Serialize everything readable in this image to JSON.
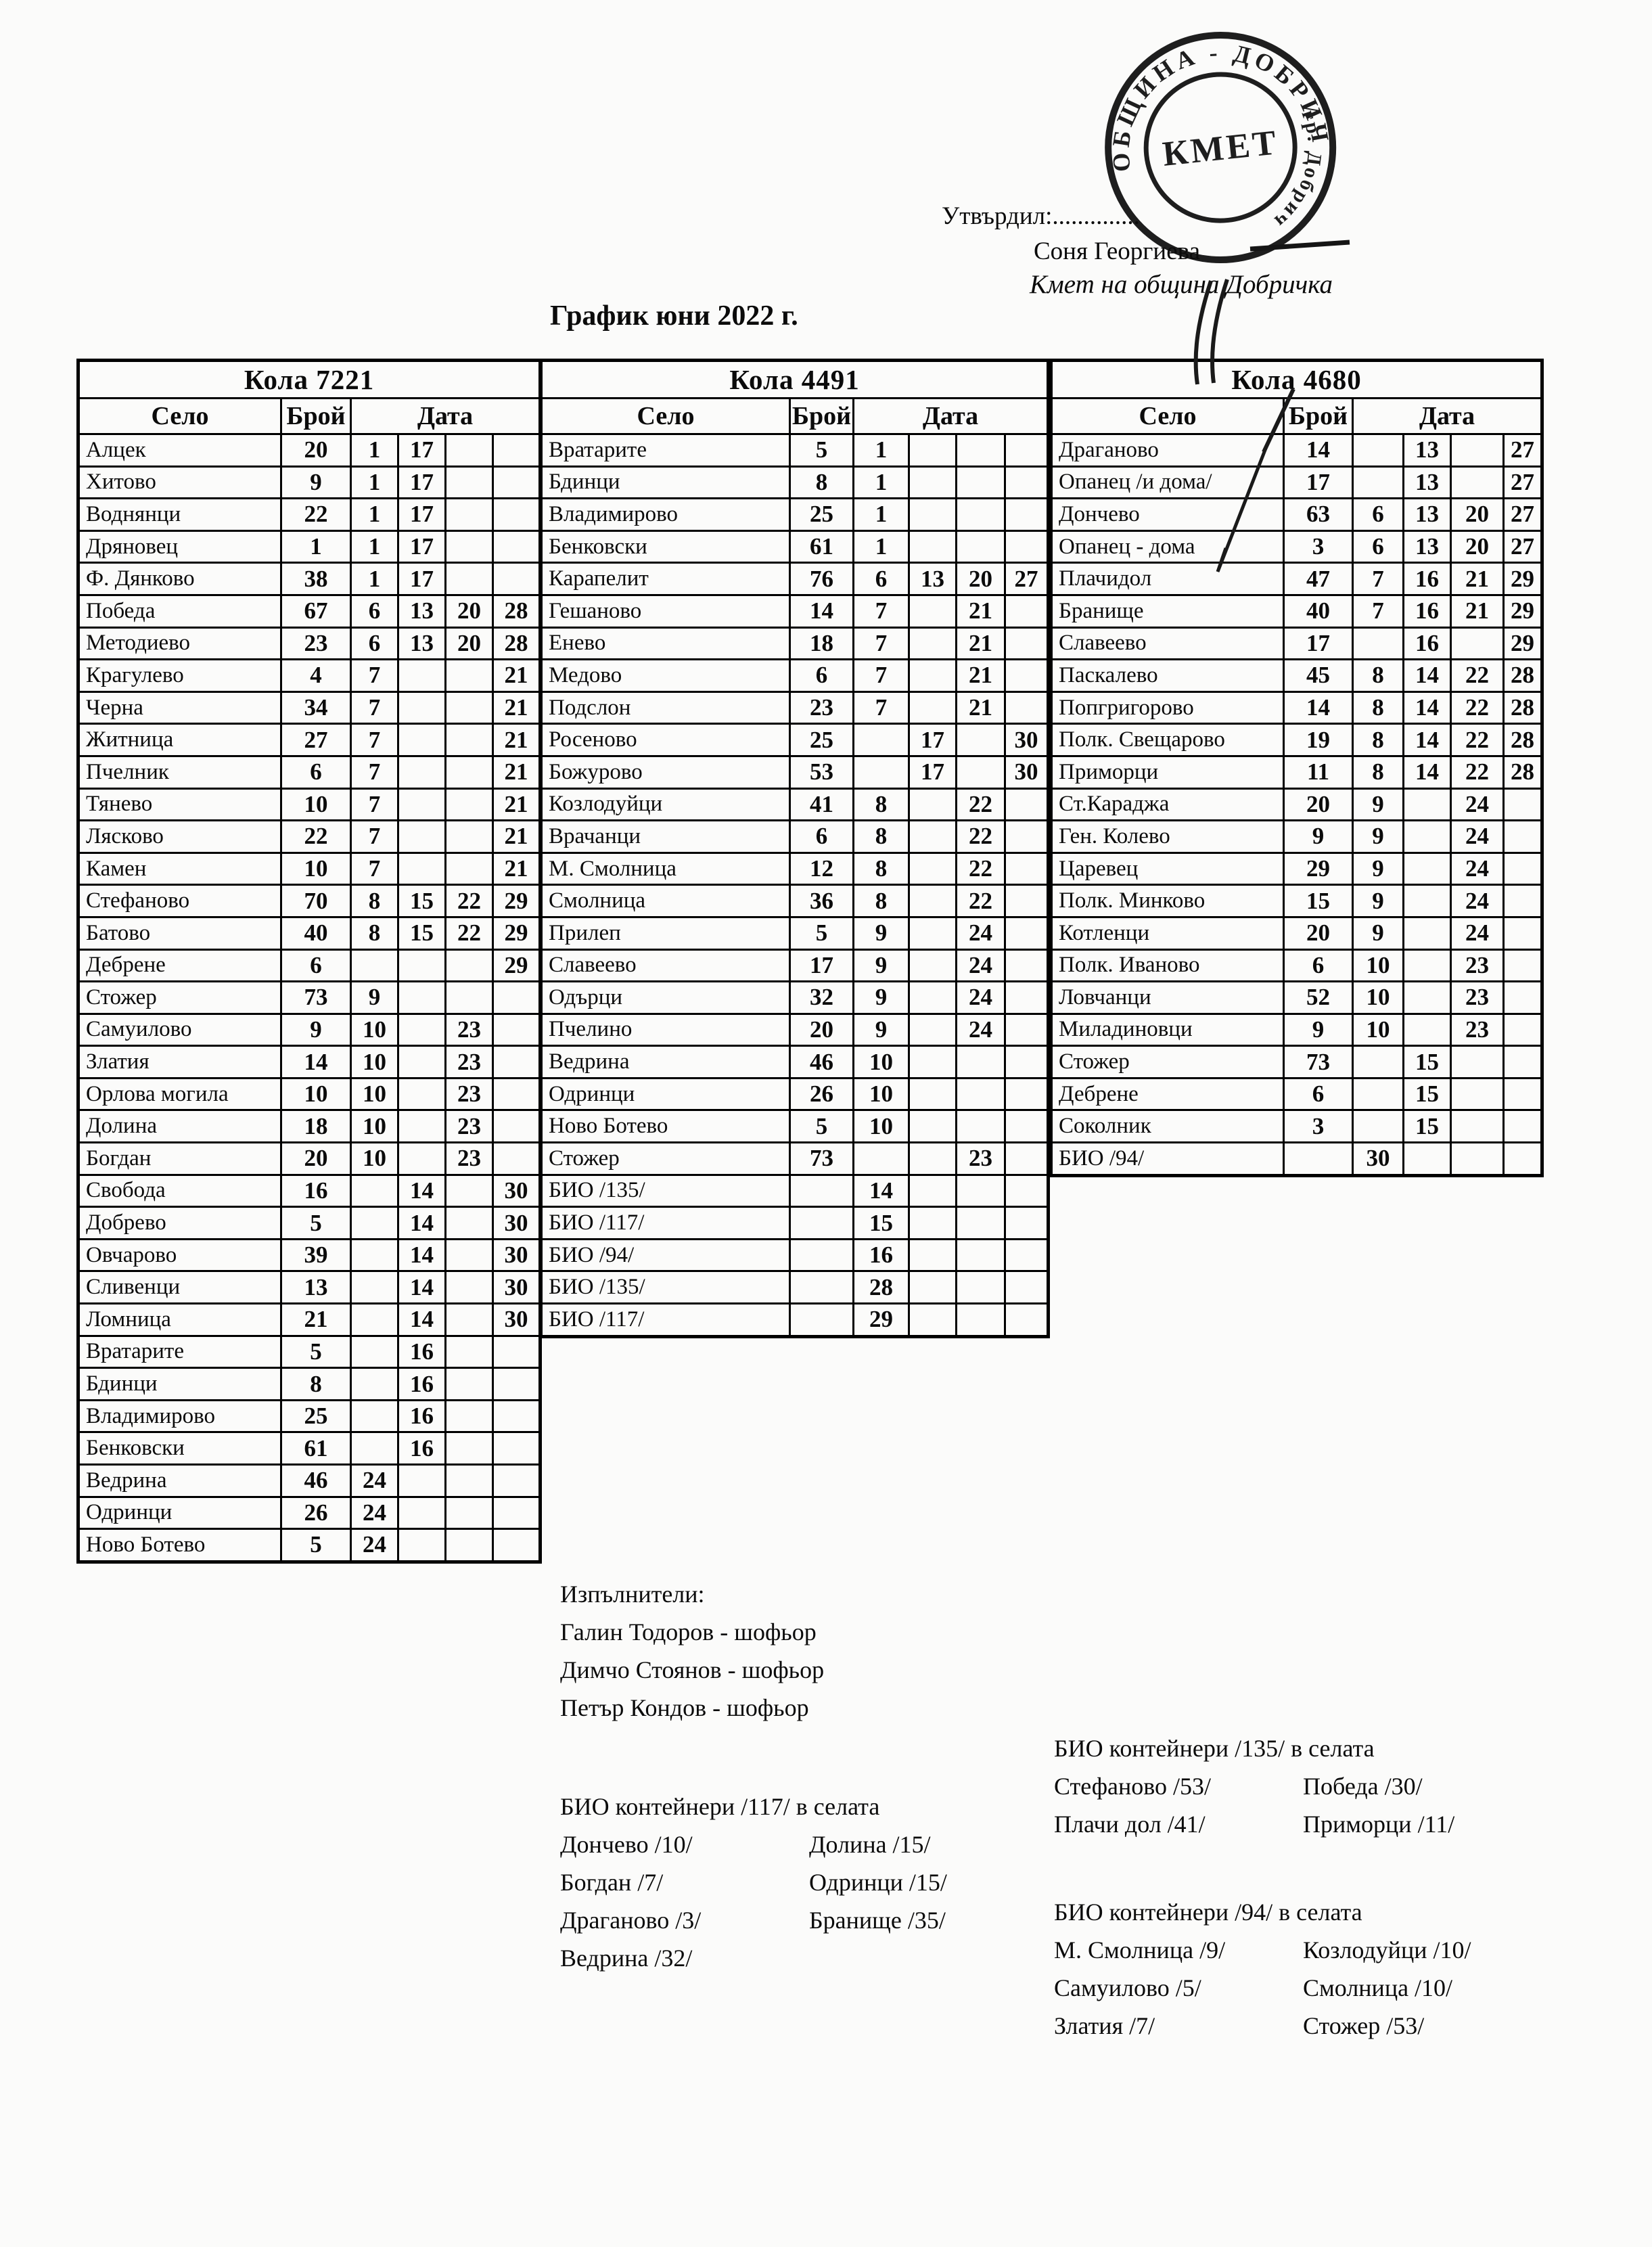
{
  "approval": {
    "label": "Утвърдил:..............",
    "name": "Соня Георгиева",
    "title": "Кмет  на община Добричка"
  },
  "stamp": {
    "ring_text_top": "ОБЩИНА - ДОБРИЧ",
    "ring_text_side": "гр. Добрич",
    "center_text": "КМЕТ"
  },
  "title": "График юни 2022 г.",
  "columns": {
    "village": "Село",
    "count": "Брой",
    "date": "Дата"
  },
  "tables": [
    {
      "name": "Кола 7221",
      "rows": [
        {
          "village": "Алцек",
          "count": "20",
          "dates": [
            "1",
            "17",
            "",
            ""
          ]
        },
        {
          "village": "Хитово",
          "count": "9",
          "dates": [
            "1",
            "17",
            "",
            ""
          ]
        },
        {
          "village": "Воднянци",
          "count": "22",
          "dates": [
            "1",
            "17",
            "",
            ""
          ]
        },
        {
          "village": "Дряновец",
          "count": "1",
          "dates": [
            "1",
            "17",
            "",
            ""
          ]
        },
        {
          "village": "Ф. Дянково",
          "count": "38",
          "dates": [
            "1",
            "17",
            "",
            ""
          ]
        },
        {
          "village": "Победа",
          "count": "67",
          "dates": [
            "6",
            "13",
            "20",
            "28"
          ]
        },
        {
          "village": "Методиево",
          "count": "23",
          "dates": [
            "6",
            "13",
            "20",
            "28"
          ]
        },
        {
          "village": "Крагулево",
          "count": "4",
          "dates": [
            "7",
            "",
            "",
            "21"
          ]
        },
        {
          "village": "Черна",
          "count": "34",
          "dates": [
            "7",
            "",
            "",
            "21"
          ]
        },
        {
          "village": "Житница",
          "count": "27",
          "dates": [
            "7",
            "",
            "",
            "21"
          ]
        },
        {
          "village": "Пчелник",
          "count": "6",
          "dates": [
            "7",
            "",
            "",
            "21"
          ]
        },
        {
          "village": "Тянево",
          "count": "10",
          "dates": [
            "7",
            "",
            "",
            "21"
          ]
        },
        {
          "village": "Лясково",
          "count": "22",
          "dates": [
            "7",
            "",
            "",
            "21"
          ]
        },
        {
          "village": "Камен",
          "count": "10",
          "dates": [
            "7",
            "",
            "",
            "21"
          ]
        },
        {
          "village": "Стефаново",
          "count": "70",
          "dates": [
            "8",
            "15",
            "22",
            "29"
          ]
        },
        {
          "village": "Батово",
          "count": "40",
          "dates": [
            "8",
            "15",
            "22",
            "29"
          ]
        },
        {
          "village": "Дебрене",
          "count": "6",
          "dates": [
            "",
            "",
            "",
            "29"
          ]
        },
        {
          "village": "Стожер",
          "count": "73",
          "dates": [
            "9",
            "",
            "",
            ""
          ]
        },
        {
          "village": "Самуилово",
          "count": "9",
          "dates": [
            "10",
            "",
            "23",
            ""
          ]
        },
        {
          "village": "Златия",
          "count": "14",
          "dates": [
            "10",
            "",
            "23",
            ""
          ]
        },
        {
          "village": "Орлова могила",
          "count": "10",
          "dates": [
            "10",
            "",
            "23",
            ""
          ]
        },
        {
          "village": "Долина",
          "count": "18",
          "dates": [
            "10",
            "",
            "23",
            ""
          ]
        },
        {
          "village": "Богдан",
          "count": "20",
          "dates": [
            "10",
            "",
            "23",
            ""
          ]
        },
        {
          "village": "Свобода",
          "count": "16",
          "dates": [
            "",
            "14",
            "",
            "30"
          ]
        },
        {
          "village": "Добрево",
          "count": "5",
          "dates": [
            "",
            "14",
            "",
            "30"
          ]
        },
        {
          "village": "Овчарово",
          "count": "39",
          "dates": [
            "",
            "14",
            "",
            "30"
          ]
        },
        {
          "village": "Сливенци",
          "count": "13",
          "dates": [
            "",
            "14",
            "",
            "30"
          ]
        },
        {
          "village": "Ломница",
          "count": "21",
          "dates": [
            "",
            "14",
            "",
            "30"
          ]
        },
        {
          "village": "Вратарите",
          "count": "5",
          "dates": [
            "",
            "16",
            "",
            ""
          ]
        },
        {
          "village": "Бдинци",
          "count": "8",
          "dates": [
            "",
            "16",
            "",
            ""
          ]
        },
        {
          "village": "Владимирово",
          "count": "25",
          "dates": [
            "",
            "16",
            "",
            ""
          ]
        },
        {
          "village": "Бенковски",
          "count": "61",
          "dates": [
            "",
            "16",
            "",
            ""
          ]
        },
        {
          "village": "Ведрина",
          "count": "46",
          "dates": [
            "24",
            "",
            "",
            ""
          ]
        },
        {
          "village": "Одринци",
          "count": "26",
          "dates": [
            "24",
            "",
            "",
            ""
          ]
        },
        {
          "village": "Ново Ботево",
          "count": "5",
          "dates": [
            "24",
            "",
            "",
            ""
          ]
        }
      ]
    },
    {
      "name": "Кола 4491",
      "rows": [
        {
          "village": "Вратарите",
          "count": "5",
          "dates": [
            "1",
            "",
            "",
            ""
          ]
        },
        {
          "village": "Бдинци",
          "count": "8",
          "dates": [
            "1",
            "",
            "",
            ""
          ]
        },
        {
          "village": "Владимирово",
          "count": "25",
          "dates": [
            "1",
            "",
            "",
            ""
          ]
        },
        {
          "village": "Бенковски",
          "count": "61",
          "dates": [
            "1",
            "",
            "",
            ""
          ]
        },
        {
          "village": "Карапелит",
          "count": "76",
          "dates": [
            "6",
            "13",
            "20",
            "27"
          ]
        },
        {
          "village": "Гешаново",
          "count": "14",
          "dates": [
            "7",
            "",
            "21",
            ""
          ]
        },
        {
          "village": "Енево",
          "count": "18",
          "dates": [
            "7",
            "",
            "21",
            ""
          ]
        },
        {
          "village": "Медово",
          "count": "6",
          "dates": [
            "7",
            "",
            "21",
            ""
          ]
        },
        {
          "village": "Подслон",
          "count": "23",
          "dates": [
            "7",
            "",
            "21",
            ""
          ]
        },
        {
          "village": "Росеново",
          "count": "25",
          "dates": [
            "",
            "17",
            "",
            "30"
          ]
        },
        {
          "village": "Божурово",
          "count": "53",
          "dates": [
            "",
            "17",
            "",
            "30"
          ]
        },
        {
          "village": "Козлодуйци",
          "count": "41",
          "dates": [
            "8",
            "",
            "22",
            ""
          ]
        },
        {
          "village": "Врачанци",
          "count": "6",
          "dates": [
            "8",
            "",
            "22",
            ""
          ]
        },
        {
          "village": "М. Смолница",
          "count": "12",
          "dates": [
            "8",
            "",
            "22",
            ""
          ]
        },
        {
          "village": "Смолница",
          "count": "36",
          "dates": [
            "8",
            "",
            "22",
            ""
          ]
        },
        {
          "village": "Прилеп",
          "count": "5",
          "dates": [
            "9",
            "",
            "24",
            ""
          ]
        },
        {
          "village": "Славеево",
          "count": "17",
          "dates": [
            "9",
            "",
            "24",
            ""
          ]
        },
        {
          "village": "Одърци",
          "count": "32",
          "dates": [
            "9",
            "",
            "24",
            ""
          ]
        },
        {
          "village": "Пчелино",
          "count": "20",
          "dates": [
            "9",
            "",
            "24",
            ""
          ]
        },
        {
          "village": "Ведрина",
          "count": "46",
          "dates": [
            "10",
            "",
            "",
            ""
          ]
        },
        {
          "village": "Одринци",
          "count": "26",
          "dates": [
            "10",
            "",
            "",
            ""
          ]
        },
        {
          "village": "Ново Ботево",
          "count": "5",
          "dates": [
            "10",
            "",
            "",
            ""
          ]
        },
        {
          "village": "Стожер",
          "count": "73",
          "dates": [
            "",
            "",
            "23",
            ""
          ]
        },
        {
          "village": "БИО /135/",
          "count": "",
          "dates": [
            "14",
            "",
            "",
            ""
          ]
        },
        {
          "village": "БИО /117/",
          "count": "",
          "dates": [
            "15",
            "",
            "",
            ""
          ]
        },
        {
          "village": "БИО /94/",
          "count": "",
          "dates": [
            "16",
            "",
            "",
            ""
          ]
        },
        {
          "village": "БИО /135/",
          "count": "",
          "dates": [
            "28",
            "",
            "",
            ""
          ]
        },
        {
          "village": "БИО /117/",
          "count": "",
          "dates": [
            "29",
            "",
            "",
            ""
          ]
        }
      ]
    },
    {
      "name": "Кола 4680",
      "rows": [
        {
          "village": "Драганово",
          "count": "14",
          "dates": [
            "",
            "13",
            "",
            "27"
          ]
        },
        {
          "village": "Опанец /и дома/",
          "count": "17",
          "dates": [
            "",
            "13",
            "",
            "27"
          ]
        },
        {
          "village": "Дончево",
          "count": "63",
          "dates": [
            "6",
            "13",
            "20",
            "27"
          ]
        },
        {
          "village": "Опанец - дома",
          "count": "3",
          "dates": [
            "6",
            "13",
            "20",
            "27"
          ]
        },
        {
          "village": "Плачидол",
          "count": "47",
          "dates": [
            "7",
            "16",
            "21",
            "29"
          ]
        },
        {
          "village": "Бранище",
          "count": "40",
          "dates": [
            "7",
            "16",
            "21",
            "29"
          ]
        },
        {
          "village": "Славеево",
          "count": "17",
          "dates": [
            "",
            "16",
            "",
            "29"
          ]
        },
        {
          "village": "Паскалево",
          "count": "45",
          "dates": [
            "8",
            "14",
            "22",
            "28"
          ]
        },
        {
          "village": "Попгригорово",
          "count": "14",
          "dates": [
            "8",
            "14",
            "22",
            "28"
          ]
        },
        {
          "village": "Полк. Свещарово",
          "count": "19",
          "dates": [
            "8",
            "14",
            "22",
            "28"
          ]
        },
        {
          "village": "Приморци",
          "count": "11",
          "dates": [
            "8",
            "14",
            "22",
            "28"
          ]
        },
        {
          "village": "Ст.Караджа",
          "count": "20",
          "dates": [
            "9",
            "",
            "24",
            ""
          ]
        },
        {
          "village": "Ген. Колево",
          "count": "9",
          "dates": [
            "9",
            "",
            "24",
            ""
          ]
        },
        {
          "village": "Царевец",
          "count": "29",
          "dates": [
            "9",
            "",
            "24",
            ""
          ]
        },
        {
          "village": "Полк. Минково",
          "count": "15",
          "dates": [
            "9",
            "",
            "24",
            ""
          ]
        },
        {
          "village": "Котленци",
          "count": "20",
          "dates": [
            "9",
            "",
            "24",
            ""
          ]
        },
        {
          "village": "Полк. Иваново",
          "count": "6",
          "dates": [
            "10",
            "",
            "23",
            ""
          ]
        },
        {
          "village": "Ловчанци",
          "count": "52",
          "dates": [
            "10",
            "",
            "23",
            ""
          ]
        },
        {
          "village": "Миладиновци",
          "count": "9",
          "dates": [
            "10",
            "",
            "23",
            ""
          ]
        },
        {
          "village": "Стожер",
          "count": "73",
          "dates": [
            "",
            "15",
            "",
            ""
          ]
        },
        {
          "village": "Дебрене",
          "count": "6",
          "dates": [
            "",
            "15",
            "",
            ""
          ]
        },
        {
          "village": "Соколник",
          "count": "3",
          "dates": [
            "",
            "15",
            "",
            ""
          ]
        },
        {
          "village": "БИО /94/",
          "count": "",
          "dates": [
            "30",
            "",
            "",
            ""
          ]
        }
      ]
    }
  ],
  "executors": {
    "heading": "Изпълнители:",
    "list": [
      "Галин Тодоров - шофьор",
      "Димчо Стоянов - шофьор",
      "Петър Кондов - шофьор"
    ]
  },
  "bio_blocks": [
    {
      "heading": "БИО контейнери /117/ в селата",
      "left": [
        "Дончево /10/",
        "Богдан /7/",
        "Драганово /3/",
        "Ведрина /32/"
      ],
      "right": [
        "Долина /15/",
        "Одринци /15/",
        "Бранище /35/"
      ]
    },
    {
      "heading": "БИО контейнери /135/ в селата",
      "left": [
        "Стефаново /53/",
        "Плачи дол /41/"
      ],
      "right": [
        "Победа /30/",
        "Приморци /11/"
      ]
    },
    {
      "heading": "БИО контейнери /94/ в селата",
      "left": [
        "М. Смолница /9/",
        "Самуилово /5/",
        "Златия /7/"
      ],
      "right": [
        "Козлодуйци /10/",
        "Смолница /10/",
        "Стожер /53/"
      ]
    }
  ]
}
